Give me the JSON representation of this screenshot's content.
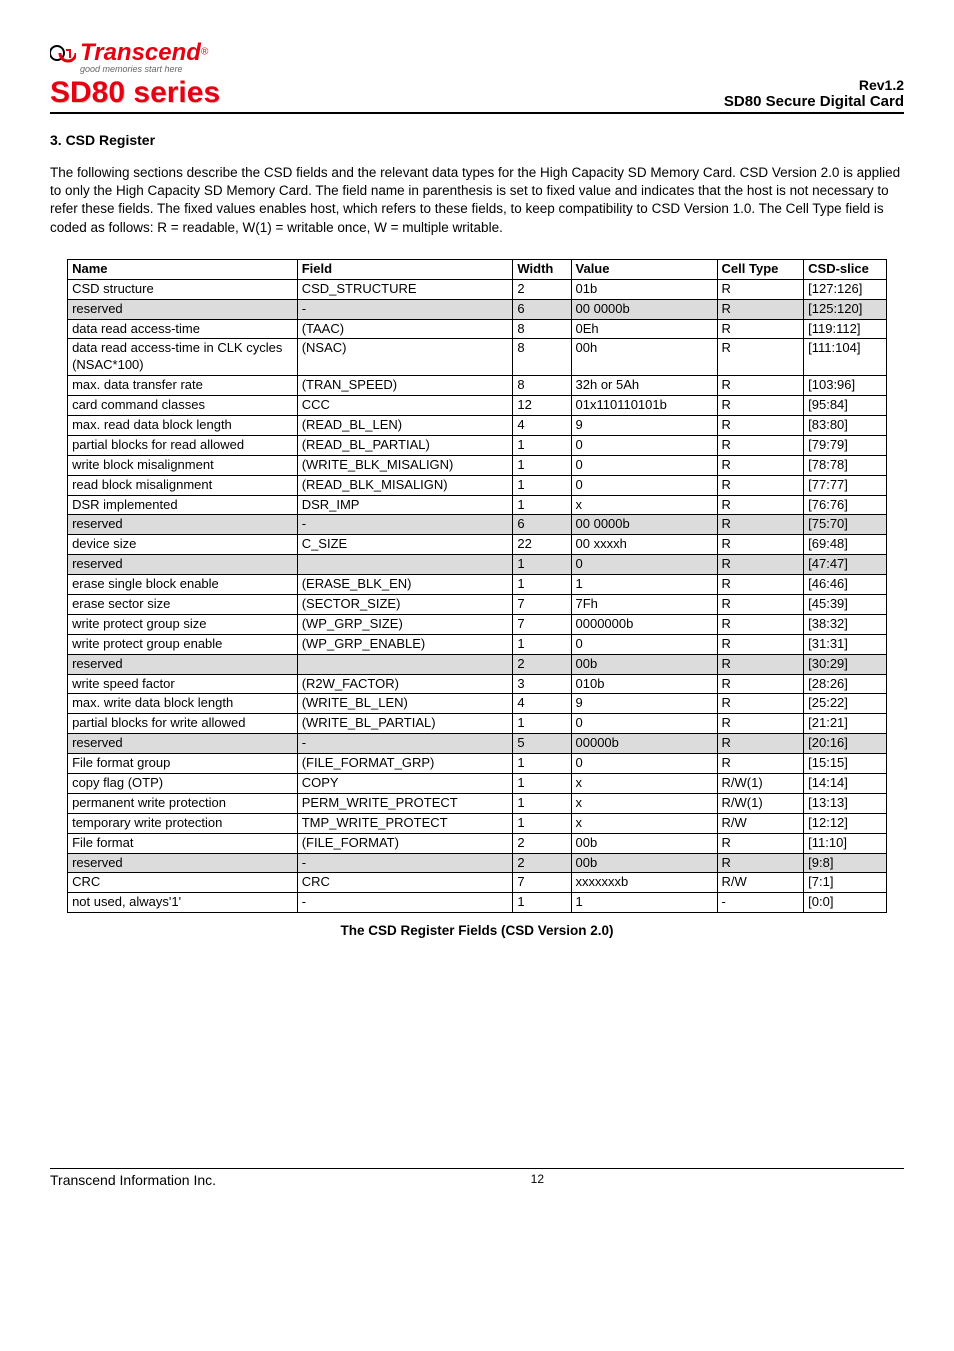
{
  "header": {
    "logo_text": "Transcend",
    "logo_tagline": "good memories start here",
    "series": "SD80 series",
    "rev": "Rev1.2",
    "product": "SD80 Secure Digital Card"
  },
  "section_heading": "3. CSD Register",
  "body_text": "The following sections describe the CSD fields and the relevant data types for the High Capacity SD Memory Card. CSD Version 2.0 is applied to only the High Capacity SD Memory Card. The field name in parenthesis is set to fixed value and indicates that the host is not necessary to refer these fields. The fixed values enables host, which refers to these fields, to keep compatibility to CSD Version 1.0. The Cell Type field is coded as follows: R = readable, W(1) = writable once, W = multiple writable.",
  "table": {
    "columns": [
      "Name",
      "Field",
      "Width",
      "Value",
      "Cell Type",
      "CSD-slice"
    ],
    "rows": [
      {
        "shaded": false,
        "cells": [
          "CSD structure",
          "CSD_STRUCTURE",
          "2",
          "01b",
          "R",
          "[127:126]"
        ]
      },
      {
        "shaded": true,
        "cells": [
          "reserved",
          "-",
          "6",
          "00 0000b",
          "R",
          "[125:120]"
        ]
      },
      {
        "shaded": false,
        "cells": [
          "data read access-time",
          "(TAAC)",
          "8",
          "0Eh",
          "R",
          "[119:112]"
        ]
      },
      {
        "shaded": false,
        "cells": [
          "data read access-time in CLK cycles (NSAC*100)",
          "(NSAC)",
          "8",
          "00h",
          "R",
          "[111:104]"
        ]
      },
      {
        "shaded": false,
        "cells": [
          "max. data transfer rate",
          "(TRAN_SPEED)",
          "8",
          "32h or 5Ah",
          "R",
          "[103:96]"
        ]
      },
      {
        "shaded": false,
        "cells": [
          "card command classes",
          "CCC",
          "12",
          "01x110110101b",
          "R",
          "[95:84]"
        ]
      },
      {
        "shaded": false,
        "cells": [
          "max. read data block length",
          "(READ_BL_LEN)",
          "4",
          "9",
          "R",
          "[83:80]"
        ]
      },
      {
        "shaded": false,
        "cells": [
          "partial blocks for read allowed",
          "(READ_BL_PARTIAL)",
          "1",
          "0",
          "R",
          "[79:79]"
        ]
      },
      {
        "shaded": false,
        "cells": [
          "write block misalignment",
          "(WRITE_BLK_MISALIGN)",
          "1",
          "0",
          "R",
          "[78:78]"
        ]
      },
      {
        "shaded": false,
        "cells": [
          "read block misalignment",
          "(READ_BLK_MISALIGN)",
          "1",
          "0",
          "R",
          "[77:77]"
        ]
      },
      {
        "shaded": false,
        "cells": [
          "DSR implemented",
          "DSR_IMP",
          "1",
          "x",
          "R",
          "[76:76]"
        ]
      },
      {
        "shaded": true,
        "cells": [
          "reserved",
          "-",
          "6",
          "00 0000b",
          "R",
          "[75:70]"
        ]
      },
      {
        "shaded": false,
        "cells": [
          "device size",
          "C_SIZE",
          "22",
          "00 xxxxh",
          "R",
          "[69:48]"
        ]
      },
      {
        "shaded": true,
        "cells": [
          "reserved",
          "",
          "1",
          "0",
          "R",
          "[47:47]"
        ]
      },
      {
        "shaded": false,
        "cells": [
          "erase single block enable",
          "(ERASE_BLK_EN)",
          "1",
          "1",
          "R",
          "[46:46]"
        ]
      },
      {
        "shaded": false,
        "cells": [
          "erase sector size",
          "(SECTOR_SIZE)",
          "7",
          "7Fh",
          "R",
          "[45:39]"
        ]
      },
      {
        "shaded": false,
        "cells": [
          "write protect group size",
          "(WP_GRP_SIZE)",
          "7",
          "0000000b",
          "R",
          "[38:32]"
        ]
      },
      {
        "shaded": false,
        "cells": [
          "write protect group enable",
          "(WP_GRP_ENABLE)",
          "1",
          "0",
          "R",
          "[31:31]"
        ]
      },
      {
        "shaded": true,
        "cells": [
          "reserved",
          "",
          "2",
          "00b",
          "R",
          "[30:29]"
        ]
      },
      {
        "shaded": false,
        "cells": [
          "write speed factor",
          "(R2W_FACTOR)",
          "3",
          "010b",
          "R",
          "[28:26]"
        ]
      },
      {
        "shaded": false,
        "cells": [
          "max. write data block length",
          "(WRITE_BL_LEN)",
          "4",
          "9",
          "R",
          "[25:22]"
        ]
      },
      {
        "shaded": false,
        "cells": [
          "partial blocks for write allowed",
          "(WRITE_BL_PARTIAL)",
          "1",
          "0",
          "R",
          "[21:21]"
        ]
      },
      {
        "shaded": true,
        "cells": [
          "reserved",
          "-",
          "5",
          "00000b",
          "R",
          "[20:16]"
        ]
      },
      {
        "shaded": false,
        "cells": [
          "File format group",
          "(FILE_FORMAT_GRP)",
          "1",
          "0",
          "R",
          "[15:15]"
        ]
      },
      {
        "shaded": false,
        "cells": [
          "copy flag (OTP)",
          "COPY",
          "1",
          "x",
          "R/W(1)",
          "[14:14]"
        ]
      },
      {
        "shaded": false,
        "cells": [
          "permanent write protection",
          "PERM_WRITE_PROTECT",
          "1",
          "x",
          "R/W(1)",
          "[13:13]"
        ]
      },
      {
        "shaded": false,
        "cells": [
          "temporary write protection",
          "TMP_WRITE_PROTECT",
          "1",
          "x",
          "R/W",
          "[12:12]"
        ]
      },
      {
        "shaded": false,
        "cells": [
          "File format",
          "(FILE_FORMAT)",
          "2",
          "00b",
          "R",
          "[11:10]"
        ]
      },
      {
        "shaded": true,
        "cells": [
          "reserved",
          "-",
          "2",
          "00b",
          "R",
          "[9:8]"
        ]
      },
      {
        "shaded": false,
        "cells": [
          "CRC",
          "CRC",
          "7",
          "xxxxxxxb",
          "R/W",
          "[7:1]"
        ]
      },
      {
        "shaded": false,
        "cells": [
          "not used, always'1'",
          "-",
          "1",
          "1",
          "-",
          "[0:0]"
        ]
      }
    ],
    "caption": "The CSD Register Fields (CSD Version 2.0)"
  },
  "footer": {
    "company": "Transcend Information Inc.",
    "page": "12"
  }
}
